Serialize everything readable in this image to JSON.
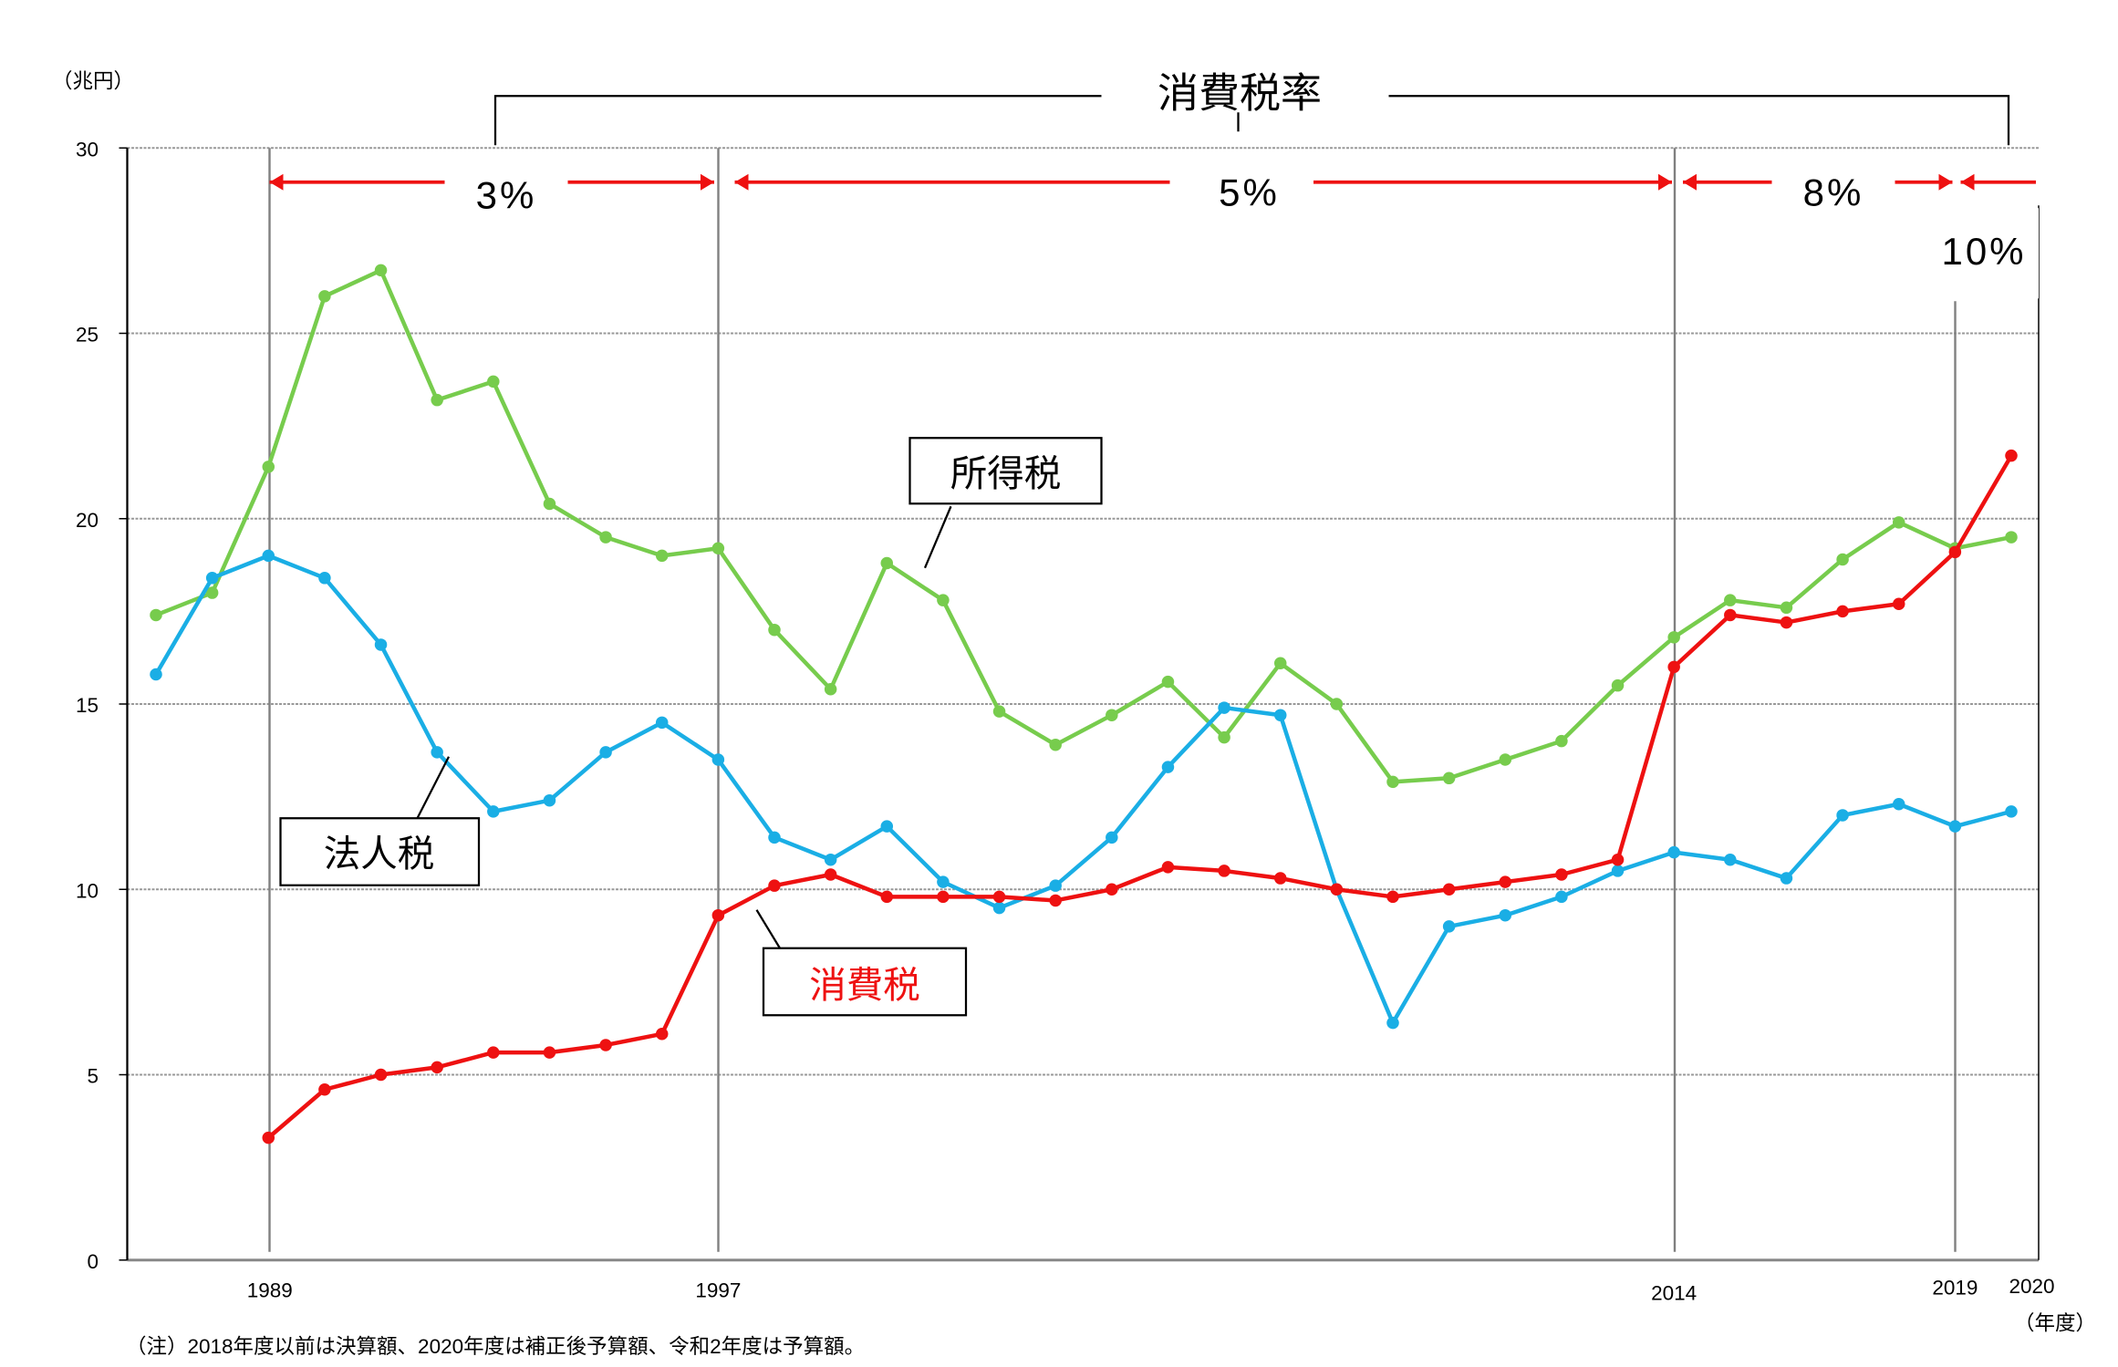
{
  "chart_data": {
    "type": "line",
    "unit_label": "（兆円）",
    "x_unit_label": "（年度）",
    "ylim": [
      0,
      30
    ],
    "y_ticks": [
      0,
      5,
      10,
      15,
      20,
      25,
      30
    ],
    "grid": true,
    "x": [
      1987,
      1988,
      1989,
      1990,
      1991,
      1992,
      1993,
      1994,
      1995,
      1996,
      1997,
      1998,
      1999,
      2000,
      2001,
      2002,
      2003,
      2004,
      2005,
      2006,
      2007,
      2008,
      2009,
      2010,
      2011,
      2012,
      2013,
      2014,
      2015,
      2016,
      2017,
      2018,
      2019,
      2020
    ],
    "x_tick_labels": [
      "1989",
      "1997",
      "2014",
      "2019",
      "2020"
    ],
    "series": [
      {
        "name": "所得税",
        "color": "#77cc4d",
        "values": [
          17.4,
          18.0,
          21.4,
          26.0,
          26.7,
          23.2,
          23.7,
          20.4,
          19.5,
          19.0,
          19.2,
          17.0,
          15.4,
          18.8,
          17.8,
          14.8,
          13.9,
          14.7,
          15.6,
          14.1,
          16.1,
          15.0,
          12.9,
          13.0,
          13.5,
          14.0,
          15.5,
          16.8,
          17.8,
          17.6,
          18.9,
          19.9,
          19.2,
          19.5
        ]
      },
      {
        "name": "法人税",
        "color": "#1aaee5",
        "values": [
          15.8,
          18.4,
          19.0,
          18.4,
          16.6,
          13.7,
          12.1,
          12.4,
          13.7,
          14.5,
          13.5,
          11.4,
          10.8,
          11.7,
          10.2,
          9.5,
          10.1,
          11.4,
          13.3,
          14.9,
          14.7,
          10.0,
          6.4,
          9.0,
          9.3,
          9.8,
          10.5,
          11.0,
          10.8,
          10.3,
          12.0,
          12.3,
          11.7,
          12.1
        ]
      },
      {
        "name": "消費税",
        "color": "#ee1111",
        "values": [
          null,
          null,
          3.3,
          4.6,
          5.0,
          5.2,
          5.6,
          5.6,
          5.8,
          6.1,
          9.3,
          10.1,
          10.4,
          9.8,
          9.8,
          9.8,
          9.7,
          10.0,
          10.6,
          10.5,
          10.3,
          10.0,
          9.8,
          10.0,
          10.2,
          10.4,
          10.8,
          16.0,
          17.4,
          17.2,
          17.5,
          17.7,
          19.1,
          21.7
        ]
      }
    ],
    "annotations": {
      "rate_title": "消費税率",
      "periods": [
        {
          "label": "3%",
          "from": 1989,
          "to": 1997
        },
        {
          "label": "5%",
          "from": 1997,
          "to": 2014
        },
        {
          "label": "8%",
          "from": 2014,
          "to": 2019
        },
        {
          "label": "10%",
          "from": 2019,
          "to": 2020
        }
      ]
    },
    "note": "（注）2018年度以前は決算額、2020年度は補正後予算額、令和2年度は予算額。"
  }
}
